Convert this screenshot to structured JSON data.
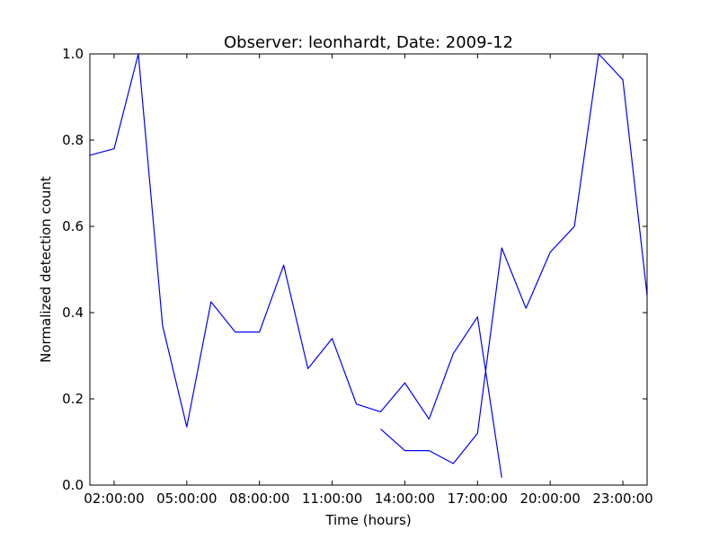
{
  "chart_data": {
    "type": "line",
    "title": "Observer: leonhardt, Date: 2009-12",
    "xlabel": "Time (hours)",
    "ylabel": "Normalized detection count",
    "xlim": [
      1,
      24
    ],
    "ylim": [
      0,
      1
    ],
    "grid": false,
    "x_ticks": [
      {
        "value": 2,
        "label": "02:00:00"
      },
      {
        "value": 5,
        "label": "05:00:00"
      },
      {
        "value": 8,
        "label": "08:00:00"
      },
      {
        "value": 11,
        "label": "11:00:00"
      },
      {
        "value": 14,
        "label": "14:00:00"
      },
      {
        "value": 17,
        "label": "17:00:00"
      },
      {
        "value": 20,
        "label": "20:00:00"
      },
      {
        "value": 23,
        "label": "23:00:00"
      }
    ],
    "y_ticks": [
      {
        "value": 0.0,
        "label": "0.0"
      },
      {
        "value": 0.2,
        "label": "0.2"
      },
      {
        "value": 0.4,
        "label": "0.4"
      },
      {
        "value": 0.6,
        "label": "0.6"
      },
      {
        "value": 0.8,
        "label": "0.8"
      },
      {
        "value": 1.0,
        "label": "1.0"
      }
    ],
    "series": [
      {
        "color": "#0000ff",
        "points": [
          [
            1,
            0.765
          ],
          [
            2,
            0.78
          ],
          [
            3,
            1.0
          ],
          [
            4,
            0.37
          ],
          [
            5,
            0.135
          ],
          [
            6,
            0.425
          ],
          [
            7,
            0.355
          ],
          [
            8,
            0.355
          ],
          [
            9,
            0.51
          ],
          [
            10,
            0.27
          ],
          [
            11,
            0.34
          ],
          [
            12,
            0.188
          ],
          [
            13,
            0.17
          ],
          [
            14,
            0.237
          ],
          [
            15,
            0.153
          ],
          [
            16,
            0.305
          ],
          [
            17,
            0.39
          ],
          [
            18,
            0.017
          ]
        ]
      },
      {
        "color": "#0000ff",
        "points": [
          [
            13,
            0.13
          ],
          [
            14,
            0.08
          ],
          [
            15,
            0.08
          ],
          [
            16,
            0.05
          ],
          [
            17,
            0.12
          ],
          [
            18,
            0.55
          ],
          [
            19,
            0.41
          ],
          [
            20,
            0.54
          ],
          [
            21,
            0.6
          ],
          [
            22,
            1.0
          ],
          [
            23,
            0.94
          ],
          [
            24,
            0.44
          ]
        ]
      }
    ]
  }
}
